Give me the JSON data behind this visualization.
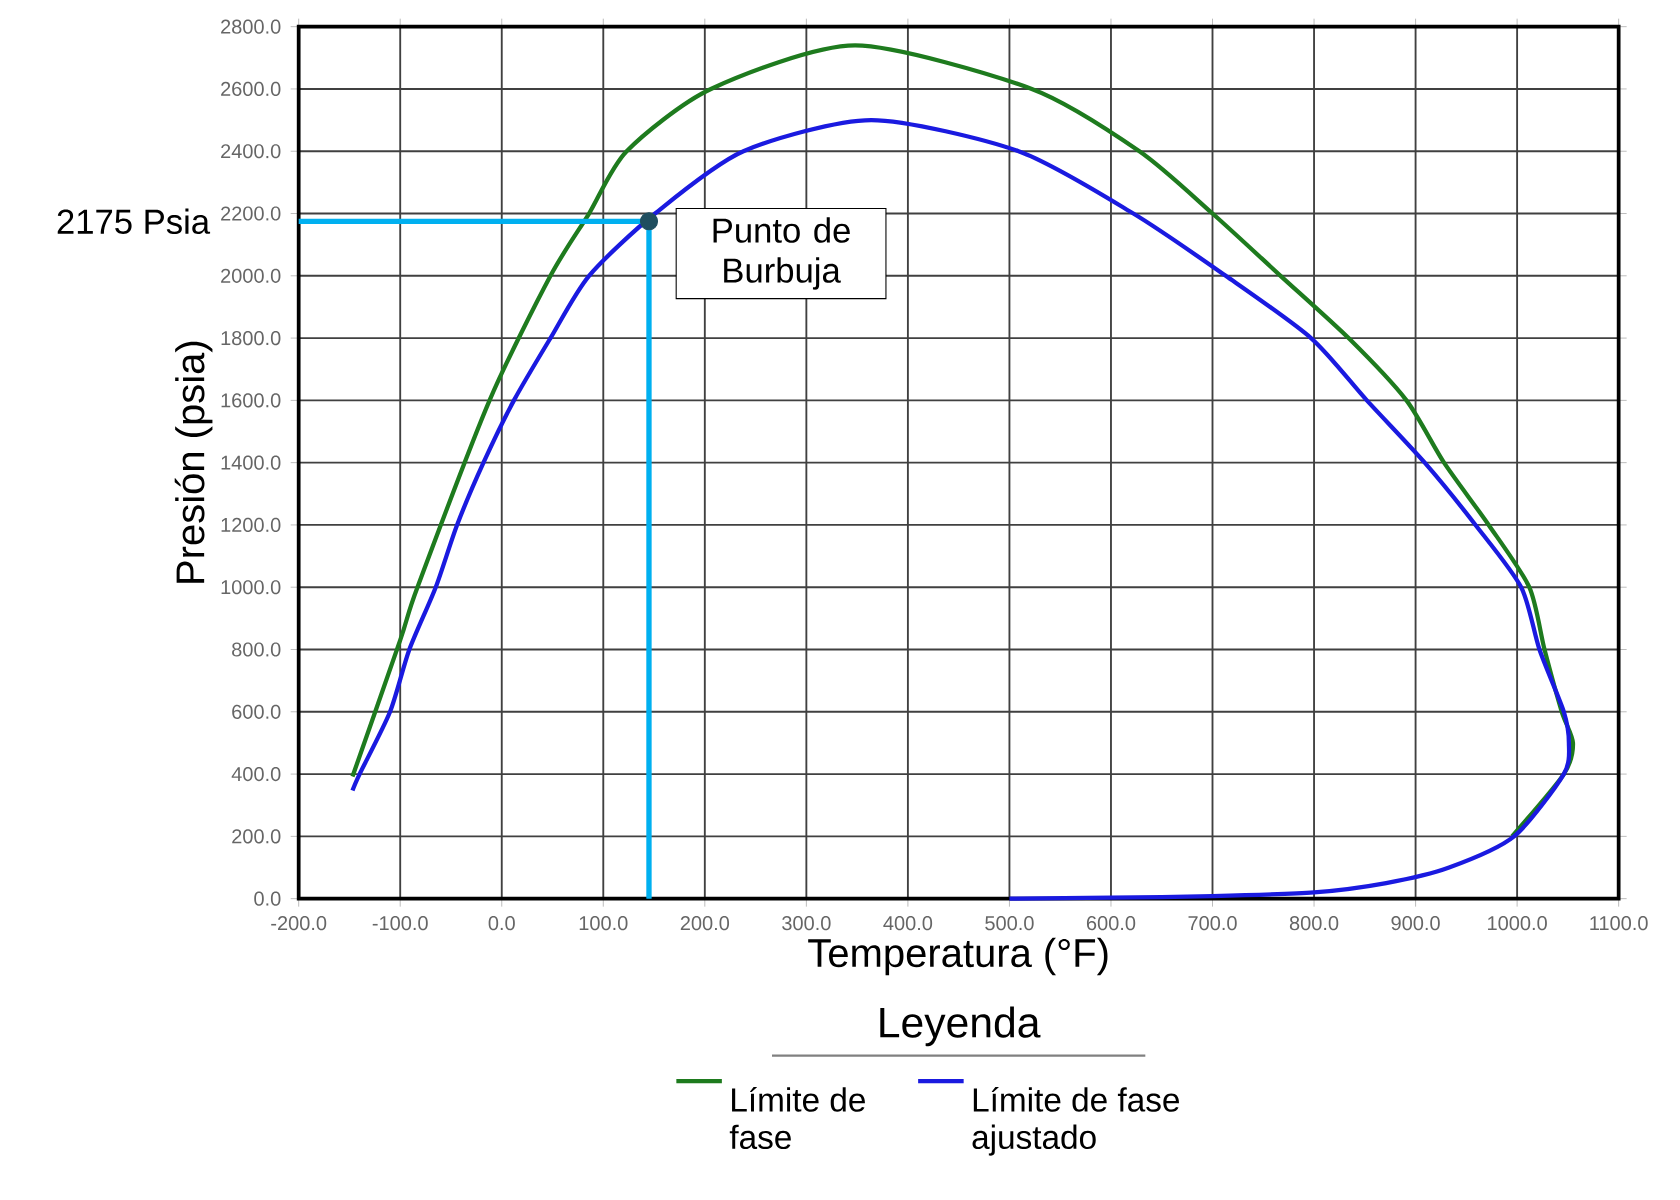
{
  "chart_data": {
    "type": "line",
    "xlabel": "Temperatura (°F)",
    "ylabel": "Presión (psia)",
    "legend_title": "Leyenda",
    "xlim": [
      -200,
      1100
    ],
    "ylim": [
      0,
      2800
    ],
    "xticks": [
      {
        "value": -200,
        "label": "-200.0"
      },
      {
        "value": -100,
        "label": "-100.0"
      },
      {
        "value": 0,
        "label": "0.0"
      },
      {
        "value": 100,
        "label": "100.0"
      },
      {
        "value": 200,
        "label": "200.0"
      },
      {
        "value": 300,
        "label": "300.0"
      },
      {
        "value": 400,
        "label": "400.0"
      },
      {
        "value": 500,
        "label": "500.0"
      },
      {
        "value": 600,
        "label": "600.0"
      },
      {
        "value": 700,
        "label": "700.0"
      },
      {
        "value": 800,
        "label": "800.0"
      },
      {
        "value": 900,
        "label": "900.0"
      },
      {
        "value": 1000,
        "label": "1000.0"
      },
      {
        "value": 1100,
        "label": "1100.0"
      }
    ],
    "yticks": [
      {
        "value": 0,
        "label": "0.0"
      },
      {
        "value": 200,
        "label": "200.0"
      },
      {
        "value": 400,
        "label": "400.0"
      },
      {
        "value": 600,
        "label": "600.0"
      },
      {
        "value": 800,
        "label": "800.0"
      },
      {
        "value": 1000,
        "label": "1000.0"
      },
      {
        "value": 1200,
        "label": "1200.0"
      },
      {
        "value": 1400,
        "label": "1400.0"
      },
      {
        "value": 1600,
        "label": "1600.0"
      },
      {
        "value": 1800,
        "label": "1800.0"
      },
      {
        "value": 2000,
        "label": "2000.0"
      },
      {
        "value": 2200,
        "label": "2200.0"
      },
      {
        "value": 2400,
        "label": "2400.0"
      },
      {
        "value": 2600,
        "label": "2600.0"
      },
      {
        "value": 2800,
        "label": "2800.0"
      }
    ],
    "grid": true,
    "legend": "bottom",
    "series": [
      {
        "name": "Límite de fase",
        "color": "#1e7b1e",
        "x": [
          -147,
          -100,
          -83,
          -12,
          48,
          86,
          123,
          206,
          348,
          522,
          628,
          700,
          767,
          834,
          891,
          928,
          972,
          1012,
          1027,
          1044,
          1055,
          1046,
          995
        ],
        "values": [
          392,
          830,
          1000,
          1600,
          2000,
          2200,
          2400,
          2600,
          2740,
          2600,
          2400,
          2200,
          2000,
          1800,
          1600,
          1400,
          1200,
          1000,
          800,
          600,
          500,
          400,
          200
        ]
      },
      {
        "name": "Límite de fase ajustado",
        "color": "#1a1ae0",
        "x": [
          -147,
          -140,
          -110,
          -91,
          -65,
          -44,
          -18,
          12,
          48,
          86,
          151,
          238,
          364,
          509,
          622,
          713,
          797,
          852,
          909,
          959,
          1004,
          1022,
          1046,
          1051,
          1046,
          997,
          933,
          871,
          800,
          700,
          600,
          500
        ],
        "values": [
          347,
          400,
          600,
          800,
          1000,
          1200,
          1400,
          1600,
          1800,
          2000,
          2200,
          2400,
          2500,
          2400,
          2200,
          2000,
          1800,
          1600,
          1400,
          1200,
          1000,
          800,
          600,
          500,
          400,
          200,
          100,
          50,
          20,
          8,
          3,
          0
        ]
      },
      {
        "color": "#00b0f0",
        "x": [
          -200,
          145,
          145
        ],
        "values": [
          2175,
          2175,
          0
        ]
      },
      {
        "color": "#1f4e5f",
        "type": "scatter",
        "x": [
          145
        ],
        "values": [
          2175
        ]
      }
    ],
    "annotations": [
      "2175 Psia",
      {
        "text": "Punto de Burbuja",
        "x": 145,
        "y": 2175
      }
    ]
  }
}
